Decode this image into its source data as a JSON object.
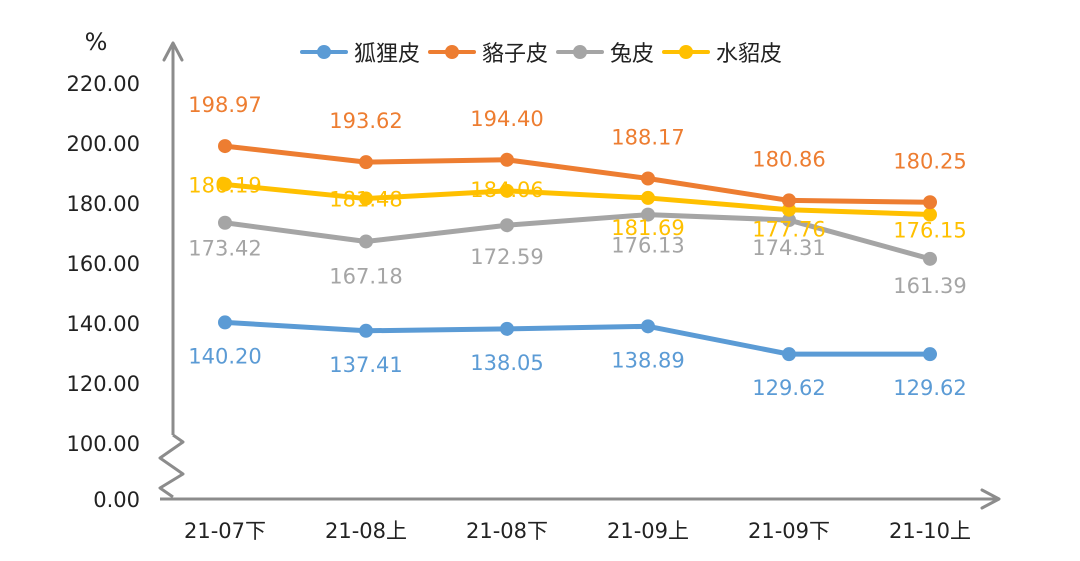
{
  "chart_data": {
    "type": "line",
    "title": "",
    "xlabel": "",
    "ylabel": "%",
    "categories": [
      "21-07下",
      "21-08上",
      "21-08下",
      "21-09上",
      "21-09下",
      "21-10上"
    ],
    "y_ticks": [
      "220.00",
      "200.00",
      "180.00",
      "160.00",
      "140.00",
      "120.00",
      "100.00",
      "0.00"
    ],
    "y_axis_break": true,
    "ylim": [
      0,
      220
    ],
    "grid": false,
    "legend_position": "top",
    "series": [
      {
        "name": "狐狸皮",
        "color": "#5B9BD5",
        "values": [
          140.2,
          137.41,
          138.05,
          138.89,
          129.62,
          129.62
        ],
        "labels": [
          "140.20",
          "137.41",
          "138.05",
          "138.89",
          "129.62",
          "129.62"
        ]
      },
      {
        "name": "貉子皮",
        "color": "#ED7D31",
        "values": [
          198.97,
          193.62,
          194.4,
          188.17,
          180.86,
          180.25
        ],
        "labels": [
          "198.97",
          "193.62",
          "194.40",
          "188.17",
          "180.86",
          "180.25"
        ]
      },
      {
        "name": "兔皮",
        "color": "#A5A5A5",
        "values": [
          173.42,
          167.18,
          172.59,
          176.13,
          174.31,
          161.39
        ],
        "labels": [
          "173.42",
          "167.18",
          "172.59",
          "176.13",
          "174.31",
          "161.39"
        ]
      },
      {
        "name": "水貂皮",
        "color": "#FFC000",
        "values": [
          186.19,
          181.48,
          184.06,
          181.69,
          177.76,
          176.15
        ],
        "labels": [
          "186.19",
          "181.48",
          "184.06",
          "181.69",
          "177.76",
          "176.15"
        ]
      }
    ]
  }
}
